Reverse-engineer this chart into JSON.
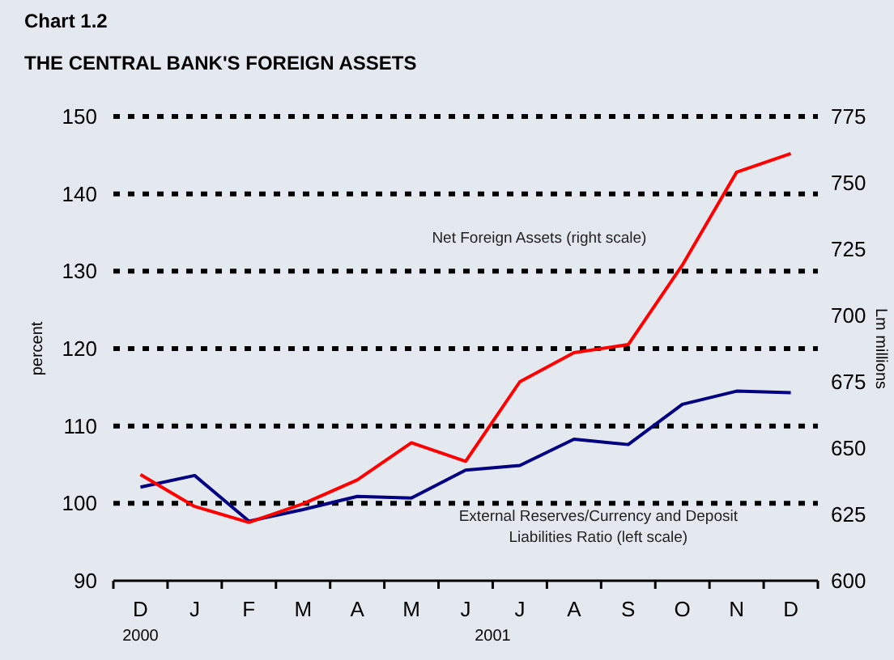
{
  "chart_data": {
    "type": "line",
    "title": "Chart 1.2",
    "subtitle": "THE CENTRAL BANK'S FOREIGN ASSETS",
    "ylabel": "percent",
    "y2label": "Lm millions",
    "categories": [
      "D",
      "J",
      "F",
      "M",
      "A",
      "M",
      "J",
      "J",
      "A",
      "S",
      "O",
      "N",
      "D"
    ],
    "series": [
      {
        "name": "External Reserves/Currency and Deposit Liabilities Ratio (left scale)",
        "color": "#000080",
        "values": [
          102.1,
          103.6,
          97.7,
          99.2,
          100.9,
          100.7,
          104.3,
          104.9,
          108.3,
          107.6,
          112.8,
          114.5,
          114.3
        ]
      },
      {
        "name": "Net Foreign Assets (right scale)",
        "color": "#ff0000",
        "axis": "y2",
        "values": [
          640,
          628,
          622,
          629,
          638,
          652,
          645,
          675,
          686,
          689,
          719,
          754,
          761
        ]
      }
    ],
    "ylim": [
      90,
      150
    ],
    "yticks": [
      90,
      100,
      110,
      120,
      130,
      140,
      150
    ],
    "y2lim": [
      600,
      775
    ],
    "y2ticks": [
      600,
      625,
      650,
      675,
      700,
      725,
      750,
      775
    ],
    "grid": "y",
    "legend": false,
    "marker": "none",
    "line_style": "solid",
    "annotations": [
      "2000",
      "2001"
    ]
  }
}
